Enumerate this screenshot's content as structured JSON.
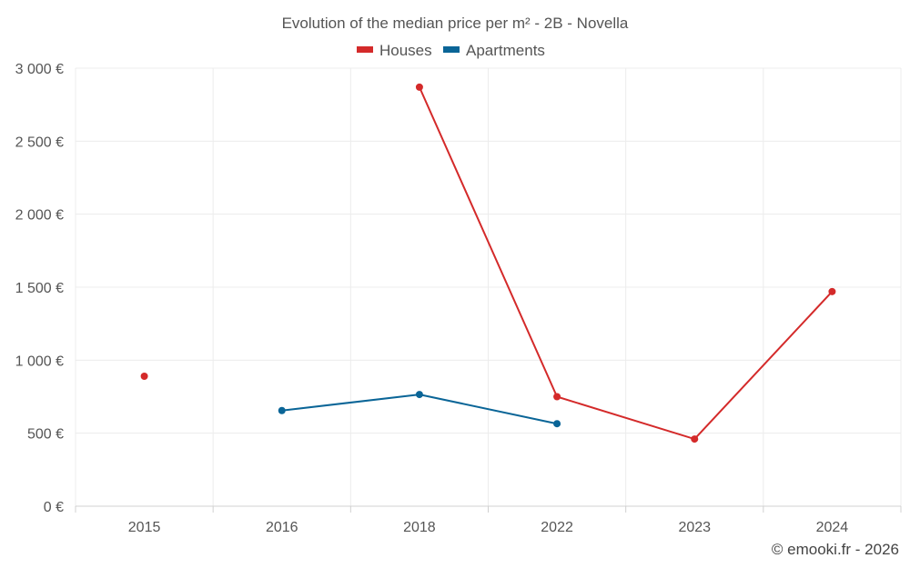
{
  "chart_data": {
    "type": "line",
    "title": "Evolution of the median price per m² - 2B - Novella",
    "categories": [
      "2015",
      "2016",
      "2018",
      "2022",
      "2023",
      "2024"
    ],
    "series": [
      {
        "name": "Houses",
        "color": "#d42a2a",
        "values": [
          890,
          null,
          2870,
          750,
          460,
          1470
        ]
      },
      {
        "name": "Apartments",
        "color": "#0a6597",
        "values": [
          null,
          655,
          765,
          565,
          null,
          null
        ]
      }
    ],
    "ylim": [
      0,
      3000
    ],
    "yticks": [
      0,
      500,
      1000,
      1500,
      2000,
      2500,
      3000
    ],
    "ytick_labels": [
      "0 €",
      "500 €",
      "1 000 €",
      "1 500 €",
      "2 000 €",
      "2 500 €",
      "3 000 €"
    ],
    "xlabel": "",
    "ylabel": "",
    "legend_position": "top-center",
    "grid": true
  },
  "credit": "© emooki.fr - 2026"
}
